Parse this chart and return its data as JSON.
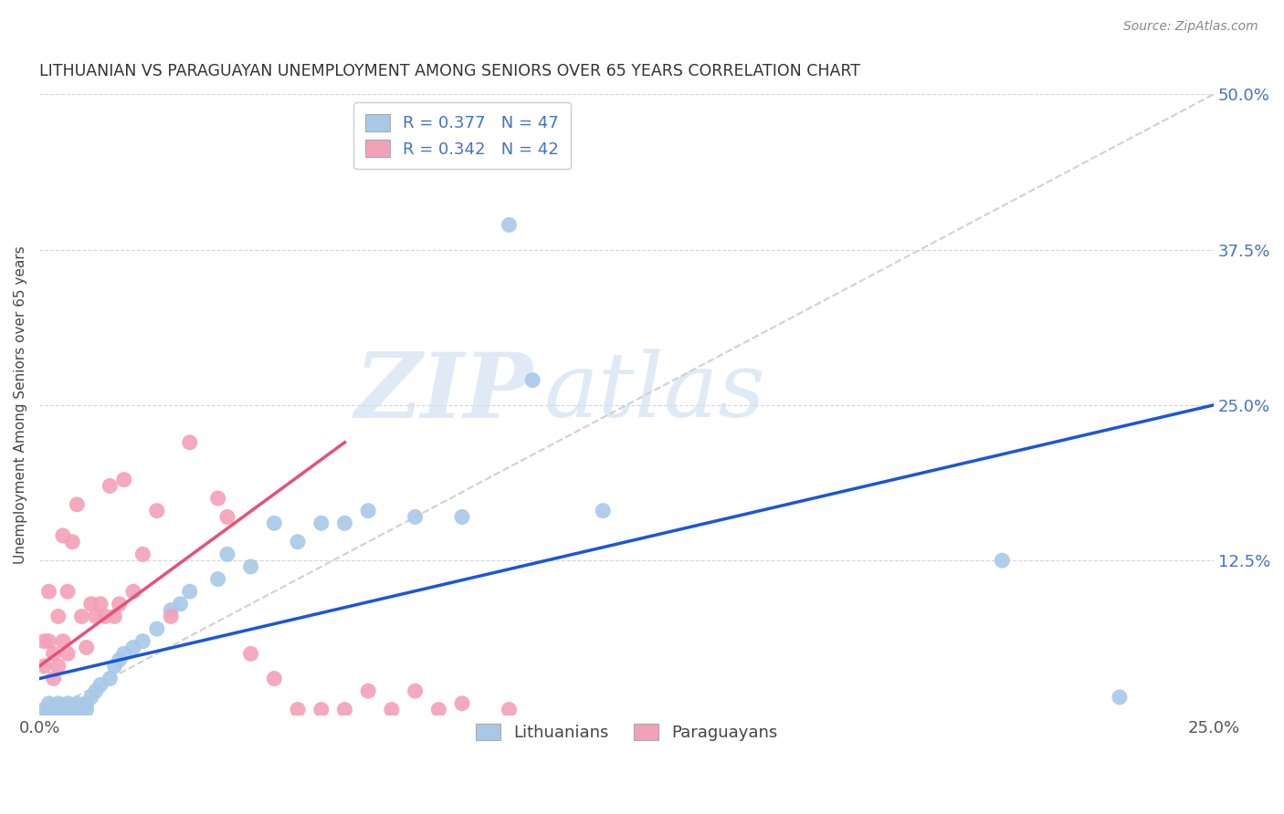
{
  "title": "LITHUANIAN VS PARAGUAYAN UNEMPLOYMENT AMONG SENIORS OVER 65 YEARS CORRELATION CHART",
  "source": "Source: ZipAtlas.com",
  "ylabel": "Unemployment Among Seniors over 65 years",
  "xlim": [
    0.0,
    0.25
  ],
  "ylim": [
    0.0,
    0.5
  ],
  "xticks": [
    0.0,
    0.05,
    0.1,
    0.15,
    0.2,
    0.25
  ],
  "xticklabels": [
    "0.0%",
    "",
    "",
    "",
    "",
    "25.0%"
  ],
  "yticks": [
    0.0,
    0.125,
    0.25,
    0.375,
    0.5
  ],
  "yticklabels": [
    "",
    "12.5%",
    "25.0%",
    "37.5%",
    "50.0%"
  ],
  "lithuanian_color": "#a8c8e8",
  "paraguayan_color": "#f4a0b8",
  "trend_blue_color": "#1a56db",
  "trend_pink_color": "#e8507a",
  "trend_dashed_color": "#cccccc",
  "legend_label_lit": "R = 0.377   N = 47",
  "legend_label_par": "R = 0.342   N = 42",
  "legend_entry_lit": "Lithuanians",
  "legend_entry_par": "Paraguayans",
  "background_color": "#ffffff",
  "grid_color": "#cccccc",
  "watermark_zip": "ZIP",
  "watermark_atlas": "atlas",
  "lit_scatter_x": [
    0.001,
    0.002,
    0.002,
    0.003,
    0.003,
    0.004,
    0.004,
    0.005,
    0.005,
    0.006,
    0.006,
    0.007,
    0.007,
    0.008,
    0.008,
    0.009,
    0.009,
    0.01,
    0.01,
    0.011,
    0.012,
    0.013,
    0.015,
    0.016,
    0.017,
    0.018,
    0.02,
    0.022,
    0.025,
    0.028,
    0.03,
    0.032,
    0.038,
    0.04,
    0.045,
    0.05,
    0.055,
    0.06,
    0.065,
    0.07,
    0.08,
    0.09,
    0.1,
    0.105,
    0.12,
    0.205,
    0.23
  ],
  "lit_scatter_y": [
    0.005,
    0.01,
    0.005,
    0.008,
    0.005,
    0.01,
    0.005,
    0.008,
    0.005,
    0.01,
    0.005,
    0.008,
    0.005,
    0.01,
    0.005,
    0.008,
    0.005,
    0.01,
    0.005,
    0.015,
    0.02,
    0.025,
    0.03,
    0.04,
    0.045,
    0.05,
    0.055,
    0.06,
    0.07,
    0.085,
    0.09,
    0.1,
    0.11,
    0.13,
    0.12,
    0.155,
    0.14,
    0.155,
    0.155,
    0.165,
    0.16,
    0.16,
    0.395,
    0.27,
    0.165,
    0.125,
    0.015
  ],
  "par_scatter_x": [
    0.001,
    0.001,
    0.002,
    0.002,
    0.003,
    0.003,
    0.004,
    0.004,
    0.005,
    0.005,
    0.006,
    0.006,
    0.007,
    0.008,
    0.009,
    0.01,
    0.011,
    0.012,
    0.013,
    0.014,
    0.015,
    0.016,
    0.017,
    0.018,
    0.02,
    0.022,
    0.025,
    0.028,
    0.032,
    0.038,
    0.04,
    0.045,
    0.05,
    0.055,
    0.06,
    0.065,
    0.07,
    0.075,
    0.08,
    0.085,
    0.09,
    0.1
  ],
  "par_scatter_y": [
    0.06,
    0.04,
    0.1,
    0.06,
    0.05,
    0.03,
    0.08,
    0.04,
    0.145,
    0.06,
    0.1,
    0.05,
    0.14,
    0.17,
    0.08,
    0.055,
    0.09,
    0.08,
    0.09,
    0.08,
    0.185,
    0.08,
    0.09,
    0.19,
    0.1,
    0.13,
    0.165,
    0.08,
    0.22,
    0.175,
    0.16,
    0.05,
    0.03,
    0.005,
    0.005,
    0.005,
    0.02,
    0.005,
    0.02,
    0.005,
    0.01,
    0.005
  ],
  "lit_trend_x": [
    0.0,
    0.25
  ],
  "lit_trend_y": [
    0.03,
    0.25
  ],
  "par_trend_x": [
    0.0,
    0.065
  ],
  "par_trend_y": [
    0.04,
    0.22
  ],
  "dash_trend_x": [
    0.0,
    0.25
  ],
  "dash_trend_y": [
    0.0,
    0.5
  ]
}
